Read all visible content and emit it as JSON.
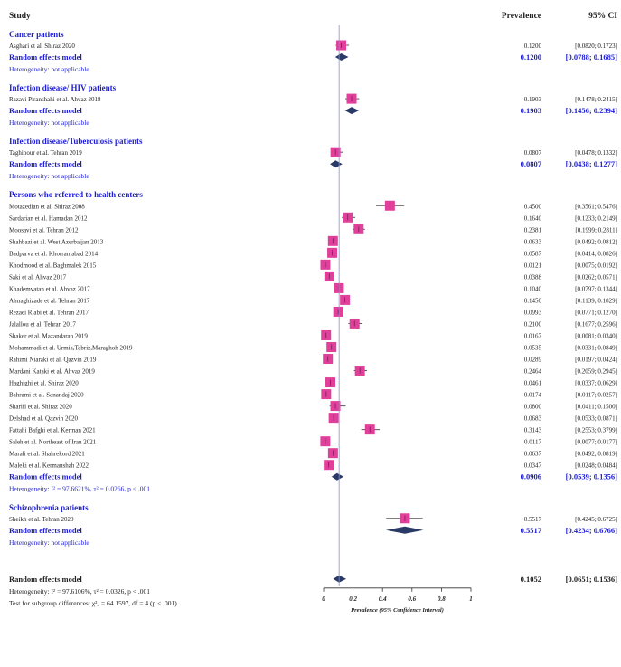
{
  "chart_data": {
    "type": "forest",
    "headers": {
      "study": "Study",
      "prevalence": "Prevalence",
      "ci": "95% CI"
    },
    "xlabel": "Prevalence (95% Confidence Interval)",
    "xlim": [
      0,
      1
    ],
    "xticks": [
      0,
      0.2,
      0.4,
      0.6,
      0.8,
      1
    ],
    "xtick_labels": [
      "0",
      "0.2",
      "0.4",
      "0.6",
      "0.8",
      "1"
    ],
    "groups": [
      {
        "title": "Cancer patients",
        "studies": [
          {
            "name": "Asghari et al. Shiraz 2020",
            "est": 0.12,
            "lo": 0.082,
            "hi": 0.1723,
            "prev": "0.1200",
            "ci": "[0.0820; 0.1723]"
          }
        ],
        "pooled": {
          "label": "Random effects model",
          "est": 0.12,
          "lo": 0.0788,
          "hi": 0.1685,
          "prev": "0.1200",
          "ci": "[0.0788; 0.1685]"
        },
        "heterogeneity": "Heterogeneity: not applicable"
      },
      {
        "title": "Infection disease/ HIV patients",
        "studies": [
          {
            "name": "Razavi Piranshahi et al. Ahvaz 2018",
            "est": 0.1903,
            "lo": 0.1478,
            "hi": 0.2415,
            "prev": "0.1903",
            "ci": "[0.1478; 0.2415]"
          }
        ],
        "pooled": {
          "label": "Random effects model",
          "est": 0.1903,
          "lo": 0.1456,
          "hi": 0.2394,
          "prev": "0.1903",
          "ci": "[0.1456; 0.2394]"
        },
        "heterogeneity": "Heterogeneity: not applicable"
      },
      {
        "title": "Infection disease/Tuberculosis patients",
        "studies": [
          {
            "name": "Taghipour et al. Tehran 2019",
            "est": 0.0807,
            "lo": 0.0478,
            "hi": 0.1332,
            "prev": "0.0807",
            "ci": "[0.0478; 0.1332]"
          }
        ],
        "pooled": {
          "label": "Random effects model",
          "est": 0.0807,
          "lo": 0.0438,
          "hi": 0.1277,
          "prev": "0.0807",
          "ci": "[0.0438; 0.1277]"
        },
        "heterogeneity": "Heterogeneity: not applicable"
      },
      {
        "title": "Persons who  referred to health centers",
        "studies": [
          {
            "name": "Motazedian et al. Shiraz 2008",
            "est": 0.45,
            "lo": 0.3561,
            "hi": 0.5476,
            "prev": "0.4500",
            "ci": "[0.3561; 0.5476]"
          },
          {
            "name": "Sardarian et al. Hamadan 2012",
            "est": 0.164,
            "lo": 0.1233,
            "hi": 0.2149,
            "prev": "0.1640",
            "ci": "[0.1233; 0.2149]"
          },
          {
            "name": "Moosavi et al. Tehran 2012",
            "est": 0.2381,
            "lo": 0.1999,
            "hi": 0.2811,
            "prev": "0.2381",
            "ci": "[0.1999; 0.2811]"
          },
          {
            "name": "Shahbazi et al. West Azerbaijan 2013",
            "est": 0.0633,
            "lo": 0.0492,
            "hi": 0.0812,
            "prev": "0.0633",
            "ci": "[0.0492; 0.0812]"
          },
          {
            "name": "Badparva et al. Khorramabad 2014",
            "est": 0.0587,
            "lo": 0.0414,
            "hi": 0.0826,
            "prev": "0.0587",
            "ci": "[0.0414; 0.0826]"
          },
          {
            "name": "Khodmood et al. Baghmalek 2015",
            "est": 0.0121,
            "lo": 0.0075,
            "hi": 0.0192,
            "prev": "0.0121",
            "ci": "[0.0075; 0.0192]"
          },
          {
            "name": "Saki et al. Ahvaz 2017",
            "est": 0.0388,
            "lo": 0.0262,
            "hi": 0.0571,
            "prev": "0.0388",
            "ci": "[0.0262; 0.0571]"
          },
          {
            "name": "Khademvatan et al. Ahvaz 2017",
            "est": 0.104,
            "lo": 0.0797,
            "hi": 0.1344,
            "prev": "0.1040",
            "ci": "[0.0797; 0.1344]"
          },
          {
            "name": "Almaghizade et al. Tehran 2017",
            "est": 0.145,
            "lo": 0.1139,
            "hi": 0.1829,
            "prev": "0.1450",
            "ci": "[0.1139; 0.1829]"
          },
          {
            "name": "Rezaei Riabi et al. Tehran 2017",
            "est": 0.0993,
            "lo": 0.0771,
            "hi": 0.127,
            "prev": "0.0993",
            "ci": "[0.0771; 0.1270]"
          },
          {
            "name": "Jalallou et al. Tehran 2017",
            "est": 0.21,
            "lo": 0.1677,
            "hi": 0.2596,
            "prev": "0.2100",
            "ci": "[0.1677; 0.2596]"
          },
          {
            "name": "Shaker et al. Mazandaran 2019",
            "est": 0.0167,
            "lo": 0.0081,
            "hi": 0.034,
            "prev": "0.0167",
            "ci": "[0.0081; 0.0340]"
          },
          {
            "name": "Mohammadi et al. Urmia,Tabriz,Maraghoh 2019",
            "est": 0.0535,
            "lo": 0.0331,
            "hi": 0.0849,
            "prev": "0.0535",
            "ci": "[0.0331; 0.0849]"
          },
          {
            "name": "Rahimi Niaraki et al. Qazvin 2019",
            "est": 0.0289,
            "lo": 0.0197,
            "hi": 0.0424,
            "prev": "0.0289",
            "ci": "[0.0197; 0.0424]"
          },
          {
            "name": "Mardani Kataki et al. Ahvaz 2019",
            "est": 0.2464,
            "lo": 0.2059,
            "hi": 0.2945,
            "prev": "0.2464",
            "ci": "[0.2059; 0.2945]"
          },
          {
            "name": "Haghighi et al. Shiraz 2020",
            "est": 0.0461,
            "lo": 0.0337,
            "hi": 0.0629,
            "prev": "0.0461",
            "ci": "[0.0337; 0.0629]"
          },
          {
            "name": "Bahrami et al. Sanandaj 2020",
            "est": 0.0174,
            "lo": 0.0117,
            "hi": 0.0257,
            "prev": "0.0174",
            "ci": "[0.0117; 0.0257]"
          },
          {
            "name": "Sharifi et al. Shiraz 2020",
            "est": 0.08,
            "lo": 0.0411,
            "hi": 0.15,
            "prev": "0.0800",
            "ci": "[0.0411; 0.1500]"
          },
          {
            "name": "Delshad et al. Qazvin 2020",
            "est": 0.0683,
            "lo": 0.0533,
            "hi": 0.0871,
            "prev": "0.0683",
            "ci": "[0.0533; 0.0871]"
          },
          {
            "name": "Fattahi Bafghi et al. Kerman 2021",
            "est": 0.3143,
            "lo": 0.2553,
            "hi": 0.3799,
            "prev": "0.3143",
            "ci": "[0.2553; 0.3799]"
          },
          {
            "name": "Saleh et al. Northeast of Iran 2021",
            "est": 0.0117,
            "lo": 0.0077,
            "hi": 0.0177,
            "prev": "0.0117",
            "ci": "[0.0077; 0.0177]"
          },
          {
            "name": "Marali et al. Shahrekord 2021",
            "est": 0.0637,
            "lo": 0.0492,
            "hi": 0.0819,
            "prev": "0.0637",
            "ci": "[0.0492; 0.0819]"
          },
          {
            "name": "Maleki et al. Kermanshah 2022",
            "est": 0.0347,
            "lo": 0.0248,
            "hi": 0.0484,
            "prev": "0.0347",
            "ci": "[0.0248; 0.0484]"
          }
        ],
        "pooled": {
          "label": "Random effects model",
          "est": 0.0906,
          "lo": 0.0539,
          "hi": 0.1356,
          "prev": "0.0906",
          "ci": "[0.0539; 0.1356]"
        },
        "heterogeneity": "Heterogeneity: I² = 97.6621%, τ² = 0.0266, p < .001"
      },
      {
        "title": "Schizophrenia patients",
        "studies": [
          {
            "name": "Sheikh et al. Tehran 2020",
            "est": 0.5517,
            "lo": 0.4245,
            "hi": 0.6725,
            "prev": "0.5517",
            "ci": "[0.4245; 0.6725]"
          }
        ],
        "pooled": {
          "label": "Random effects model",
          "est": 0.5517,
          "lo": 0.4234,
          "hi": 0.6766,
          "prev": "0.5517",
          "ci": "[0.4234; 0.6766]"
        },
        "heterogeneity": "Heterogeneity: not applicable"
      }
    ],
    "overall": {
      "label": "Random effects model",
      "est": 0.1052,
      "lo": 0.0651,
      "hi": 0.1536,
      "prev": "0.1052",
      "ci": "[0.0651; 0.1536]",
      "heterogeneity": "Heterogeneity: I² = 97.6106%, τ² = 0.0326, p < .001",
      "subgroup_test": "Test for subgroup differences: χ²₄ = 64.1597, df = 4 (p < .001)"
    },
    "colors": {
      "group_title": "#1d1dd0",
      "square": "#e0409a",
      "diamond": "#2a3a66",
      "text": "#222222",
      "ci_line": "#555555",
      "ref_line": "#8a8ad8"
    }
  }
}
